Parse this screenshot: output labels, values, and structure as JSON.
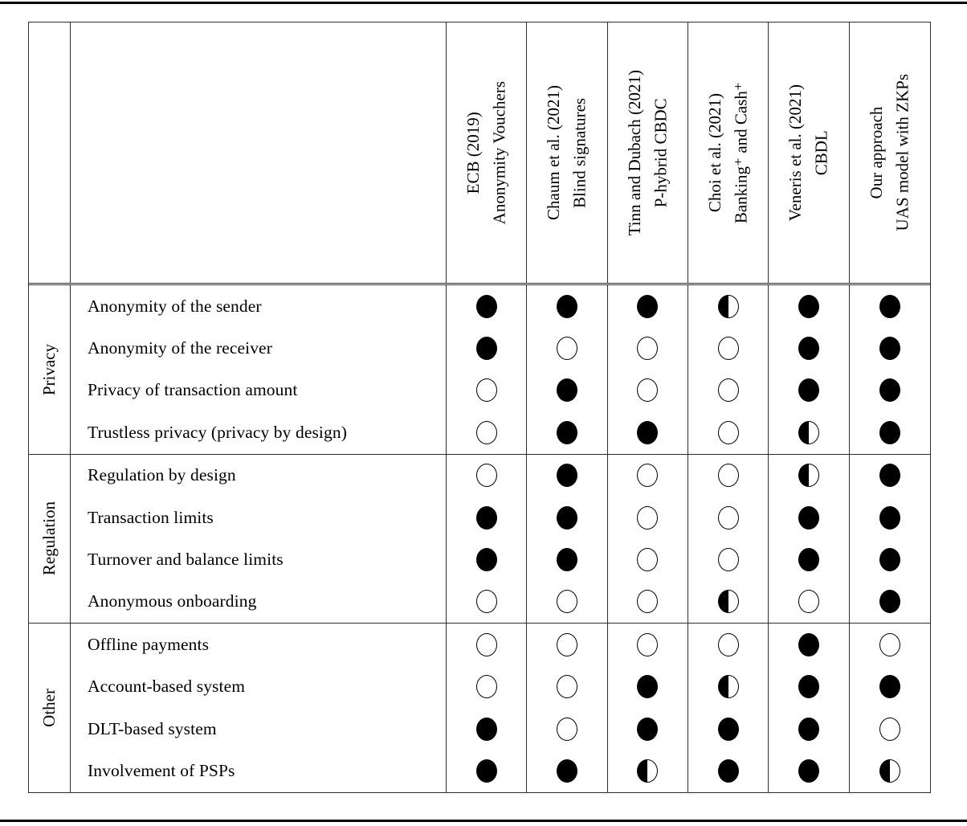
{
  "colors": {
    "ink": "#000000",
    "background": "#ffffff"
  },
  "table": {
    "columns": [
      {
        "line1": "ECB (2019)",
        "line2": "Anonymity Vouchers"
      },
      {
        "line1": "Chaum et al. (2021)",
        "line2": "Blind signatures"
      },
      {
        "line1": "Tinn and Dubach (2021)",
        "line2": "P-hybrid CBDC"
      },
      {
        "line1": "Choi et al. (2021)",
        "line2": "Banking⁺ and Cash⁺"
      },
      {
        "line1": "Veneris et al. (2021)",
        "line2": "CBDL"
      },
      {
        "line1": "Our approach",
        "line2": "UAS model with ZKPs"
      }
    ],
    "groups": [
      {
        "label": "Privacy",
        "rows": [
          {
            "label": "Anonymity of the sender",
            "cells": [
              "full",
              "full",
              "full",
              "half",
              "full",
              "full"
            ]
          },
          {
            "label": "Anonymity of the receiver",
            "cells": [
              "full",
              "empty",
              "empty",
              "empty",
              "full",
              "full"
            ]
          },
          {
            "label": "Privacy of transaction amount",
            "cells": [
              "empty",
              "full",
              "empty",
              "empty",
              "full",
              "full"
            ]
          },
          {
            "label": "Trustless privacy (privacy by design)",
            "cells": [
              "empty",
              "full",
              "full",
              "empty",
              "half",
              "full"
            ]
          }
        ]
      },
      {
        "label": "Regulation",
        "rows": [
          {
            "label": "Regulation by design",
            "cells": [
              "empty",
              "full",
              "empty",
              "empty",
              "half",
              "full"
            ]
          },
          {
            "label": "Transaction limits",
            "cells": [
              "full",
              "full",
              "empty",
              "empty",
              "full",
              "full"
            ]
          },
          {
            "label": "Turnover and balance limits",
            "cells": [
              "full",
              "full",
              "empty",
              "empty",
              "full",
              "full"
            ]
          },
          {
            "label": "Anonymous onboarding",
            "cells": [
              "empty",
              "empty",
              "empty",
              "half",
              "empty",
              "full"
            ]
          }
        ]
      },
      {
        "label": "Other",
        "rows": [
          {
            "label": "Offline payments",
            "cells": [
              "empty",
              "empty",
              "empty",
              "empty",
              "full",
              "empty"
            ]
          },
          {
            "label": "Account-based system",
            "cells": [
              "empty",
              "empty",
              "full",
              "half",
              "full",
              "full"
            ]
          },
          {
            "label": "DLT-based system",
            "cells": [
              "full",
              "empty",
              "full",
              "full",
              "full",
              "empty"
            ]
          },
          {
            "label": "Involvement of PSPs",
            "cells": [
              "full",
              "full",
              "half",
              "full",
              "full",
              "half"
            ]
          }
        ]
      }
    ]
  }
}
